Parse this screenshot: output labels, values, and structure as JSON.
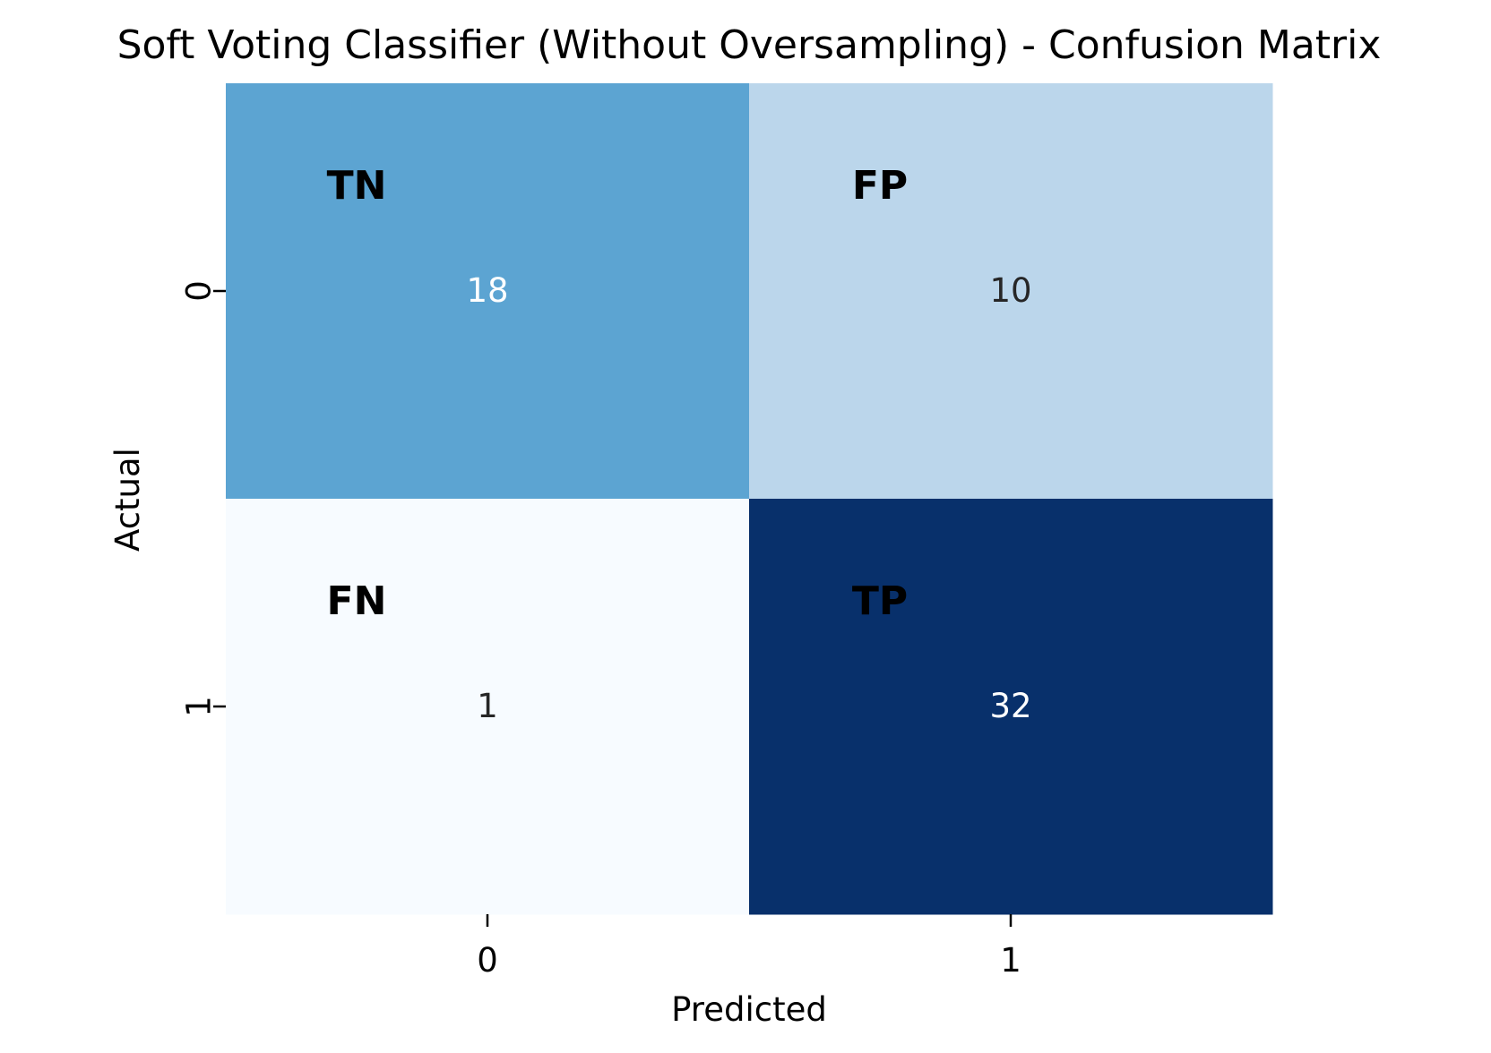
{
  "chart_data": {
    "type": "heatmap",
    "title": "Soft Voting Classifier (Without Oversampling) - Confusion Matrix",
    "xlabel": "Predicted",
    "ylabel": "Actual",
    "x_categories": [
      "0",
      "1"
    ],
    "y_categories": [
      "0",
      "1"
    ],
    "values": [
      [
        18,
        10
      ],
      [
        1,
        32
      ]
    ],
    "cell_labels": [
      [
        "TN",
        "FP"
      ],
      [
        "FN",
        "TP"
      ]
    ],
    "colormap": "Blues",
    "colorbar": false,
    "cell_colors": [
      [
        "#5ca4d2",
        "#bbd6eb"
      ],
      [
        "#f7fbff",
        "#08306b"
      ]
    ],
    "value_text_colors": [
      [
        "#ffffff",
        "#262626"
      ],
      [
        "#262626",
        "#ffffff"
      ]
    ],
    "label_text_color": "#000000"
  }
}
